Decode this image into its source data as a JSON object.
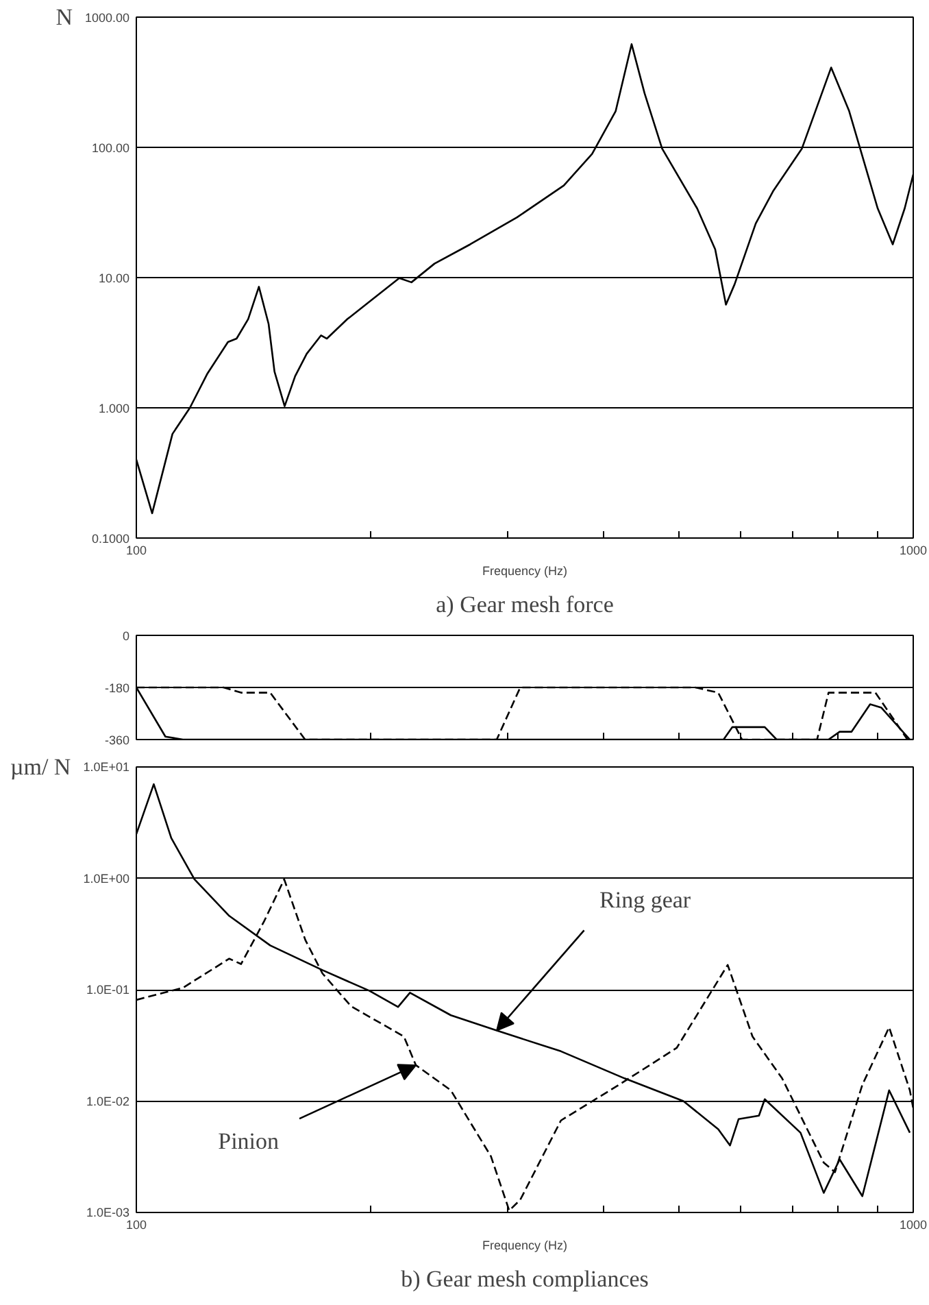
{
  "chart_data": [
    {
      "type": "line",
      "title": "a) Gear mesh force",
      "xlabel": "Frequency (Hz)",
      "ylabel": "N",
      "log": "xy",
      "grid": "y",
      "xlim": [
        100,
        1000
      ],
      "ylim": [
        0.1,
        1000
      ],
      "xticks": [
        100,
        {
          "value": 200,
          "label": null
        },
        {
          "value": 300,
          "label": null
        },
        {
          "value": 400,
          "label": null
        },
        {
          "value": 500,
          "label": null
        },
        {
          "value": 600,
          "label": null
        },
        {
          "value": 700,
          "label": null
        },
        {
          "value": 800,
          "label": null
        },
        {
          "value": 900,
          "label": null
        },
        1000
      ],
      "yticks": [
        {
          "value": 0.1,
          "label": "0.1000"
        },
        {
          "value": 1,
          "label": "1.000"
        },
        {
          "value": 10,
          "label": "10.00"
        },
        {
          "value": 100,
          "label": "100.00"
        },
        {
          "value": 1000,
          "label": "1000.00"
        }
      ],
      "series": [
        {
          "color": "#000000",
          "line_style": "solid",
          "x": [
            100,
            104.8,
            111.3,
            117.2,
            123.5,
            131.2,
            134.6,
            139.3,
            143.8,
            148,
            150.6,
            155.2,
            160.1,
            165.7,
            172.9,
            175.9,
            186.9,
            200,
            218,
            226,
            242,
            269,
            309,
            355,
            386,
            414,
            434,
            451,
            475,
            527,
            556,
            574,
            589,
            627,
            660,
            719,
            784,
            827,
            900,
            941,
            975,
            1000
          ],
          "values": [
            0.4,
            0.155,
            0.63,
            1.0,
            1.84,
            3.2,
            3.4,
            4.8,
            8.5,
            4.4,
            1.9,
            1.03,
            1.75,
            2.6,
            3.6,
            3.4,
            4.8,
            6.6,
            9.9,
            9.2,
            12.8,
            18,
            29,
            51,
            89,
            190,
            620,
            260,
            98,
            34,
            16.5,
            6.2,
            8.9,
            26,
            46,
            98,
            410,
            190,
            34,
            18,
            34,
            62
          ]
        }
      ]
    },
    {
      "type": "line",
      "log": "x",
      "grid": "y",
      "tick_labels": "y",
      "xlim": [
        100,
        1000
      ],
      "ylim": [
        -360,
        0
      ],
      "xticks": [
        100,
        200,
        300,
        400,
        500,
        600,
        700,
        800,
        900,
        1000
      ],
      "yticks": [
        -360,
        -180,
        0
      ],
      "series": [
        {
          "color": "#000000",
          "line_style": "solid",
          "x": [
            100,
            109,
            114.8,
            570,
            585,
            644,
            667,
            778,
            804,
            833,
            880,
            910,
            990,
            1000
          ],
          "values": [
            -180,
            -350,
            -360,
            -360,
            -317,
            -317,
            -360,
            -360,
            -333,
            -333,
            -238,
            -250,
            -360,
            -360
          ]
        },
        {
          "color": "#000000",
          "line_style": "dashed",
          "x": [
            100,
            129.5,
            136.4,
            148.7,
            164.9,
            291,
            312,
            524,
            561,
            602,
            752,
            778,
            894,
            983,
            1000
          ],
          "values": [
            -180,
            -180,
            -198,
            -198,
            -360,
            -360,
            -180,
            -180,
            -198,
            -360,
            -360,
            -198,
            -198,
            -360,
            -360
          ]
        }
      ]
    },
    {
      "type": "line",
      "title": "b) Gear mesh compliances",
      "xlabel": "Frequency (Hz)",
      "ylabel": "µm/ N",
      "log": "xy",
      "grid": "y",
      "xlim": [
        100,
        1000
      ],
      "ylim": [
        0.001,
        10
      ],
      "xticks": [
        100,
        {
          "value": 200,
          "label": null
        },
        {
          "value": 300,
          "label": null
        },
        {
          "value": 400,
          "label": null
        },
        {
          "value": 500,
          "label": null
        },
        {
          "value": 600,
          "label": null
        },
        {
          "value": 700,
          "label": null
        },
        {
          "value": 800,
          "label": null
        },
        {
          "value": 900,
          "label": null
        },
        1000
      ],
      "yticks": [
        {
          "value": 0.001,
          "label": "1.0E-03"
        },
        {
          "value": 0.01,
          "label": "1.0E-02"
        },
        {
          "value": 0.1,
          "label": "1.0E-01"
        },
        {
          "value": 1,
          "label": "1.0E+00"
        },
        {
          "value": 10,
          "label": "1.0E+01"
        }
      ],
      "annotations": [
        {
          "text": "Ring gear",
          "x": 291,
          "y": 0.043
        },
        {
          "text": "Pinion",
          "x": 229,
          "y": 0.021
        }
      ],
      "series": [
        {
          "color": "#000000",
          "line_style": "solid",
          "x": [
            100,
            105.3,
            110.9,
            118.8,
            131.7,
            148.7,
            173.6,
            199.4,
            217.2,
            225,
            254,
            291,
            352,
            425,
            506,
            561,
            581,
            596,
            633,
            644,
            716,
            767,
            804,
            860,
            931,
            990
          ],
          "values": [
            2.5,
            7.0,
            2.3,
            0.98,
            0.46,
            0.25,
            0.15,
            0.098,
            0.07,
            0.094,
            0.059,
            0.043,
            0.028,
            0.016,
            0.01,
            0.0056,
            0.004,
            0.0069,
            0.0074,
            0.0104,
            0.0052,
            0.0015,
            0.003,
            0.0014,
            0.0125,
            0.0052
          ]
        },
        {
          "color": "#000000",
          "line_style": "dashed",
          "x": [
            100,
            114.8,
            131.7,
            136.4,
            146,
            155,
            165,
            173.6,
            189,
            221,
            229,
            254,
            286,
            302,
            312,
            352,
            418,
            496,
            577,
            621,
            678,
            767,
            793,
            860,
            931,
            990,
            1000
          ],
          "values": [
            0.081,
            0.104,
            0.19,
            0.17,
            0.41,
            0.98,
            0.28,
            0.14,
            0.071,
            0.038,
            0.021,
            0.0125,
            0.0032,
            0.00104,
            0.0013,
            0.0067,
            0.014,
            0.03,
            0.167,
            0.038,
            0.016,
            0.0028,
            0.0023,
            0.014,
            0.046,
            0.0125,
            0.0086
          ]
        }
      ]
    }
  ]
}
